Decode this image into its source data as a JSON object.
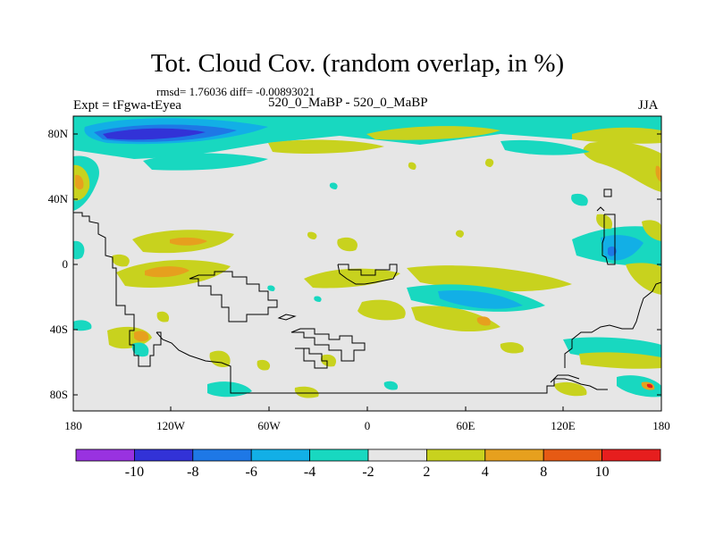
{
  "header": {
    "title": "Tot. Cloud Cov. (random overlap, in %)",
    "stats": "rmsd= 1.76036 diff= -0.00893021",
    "experiment": "Expt = tFgwa-tEyea",
    "cases": "520_0_MaBP - 520_0_MaBP",
    "season": "JJA"
  },
  "map": {
    "background_color": "#e6e6e6",
    "coastline_color": "#000000",
    "x_ticks": [
      "180",
      "120W",
      "60W",
      "0",
      "60E",
      "120E",
      "180"
    ],
    "y_ticks": [
      "80N",
      "40N",
      "0",
      "40S",
      "80S"
    ]
  },
  "colorbar": {
    "colors": [
      "#9932e0",
      "#3232d7",
      "#1e78e6",
      "#12afe6",
      "#18d8c0",
      "#e6e6e6",
      "#c8d21e",
      "#e6a01e",
      "#e65a14",
      "#e61e1e"
    ],
    "labels": [
      "-10",
      "-8",
      "-6",
      "-4",
      "-2",
      "2",
      "4",
      "8",
      "10"
    ]
  }
}
